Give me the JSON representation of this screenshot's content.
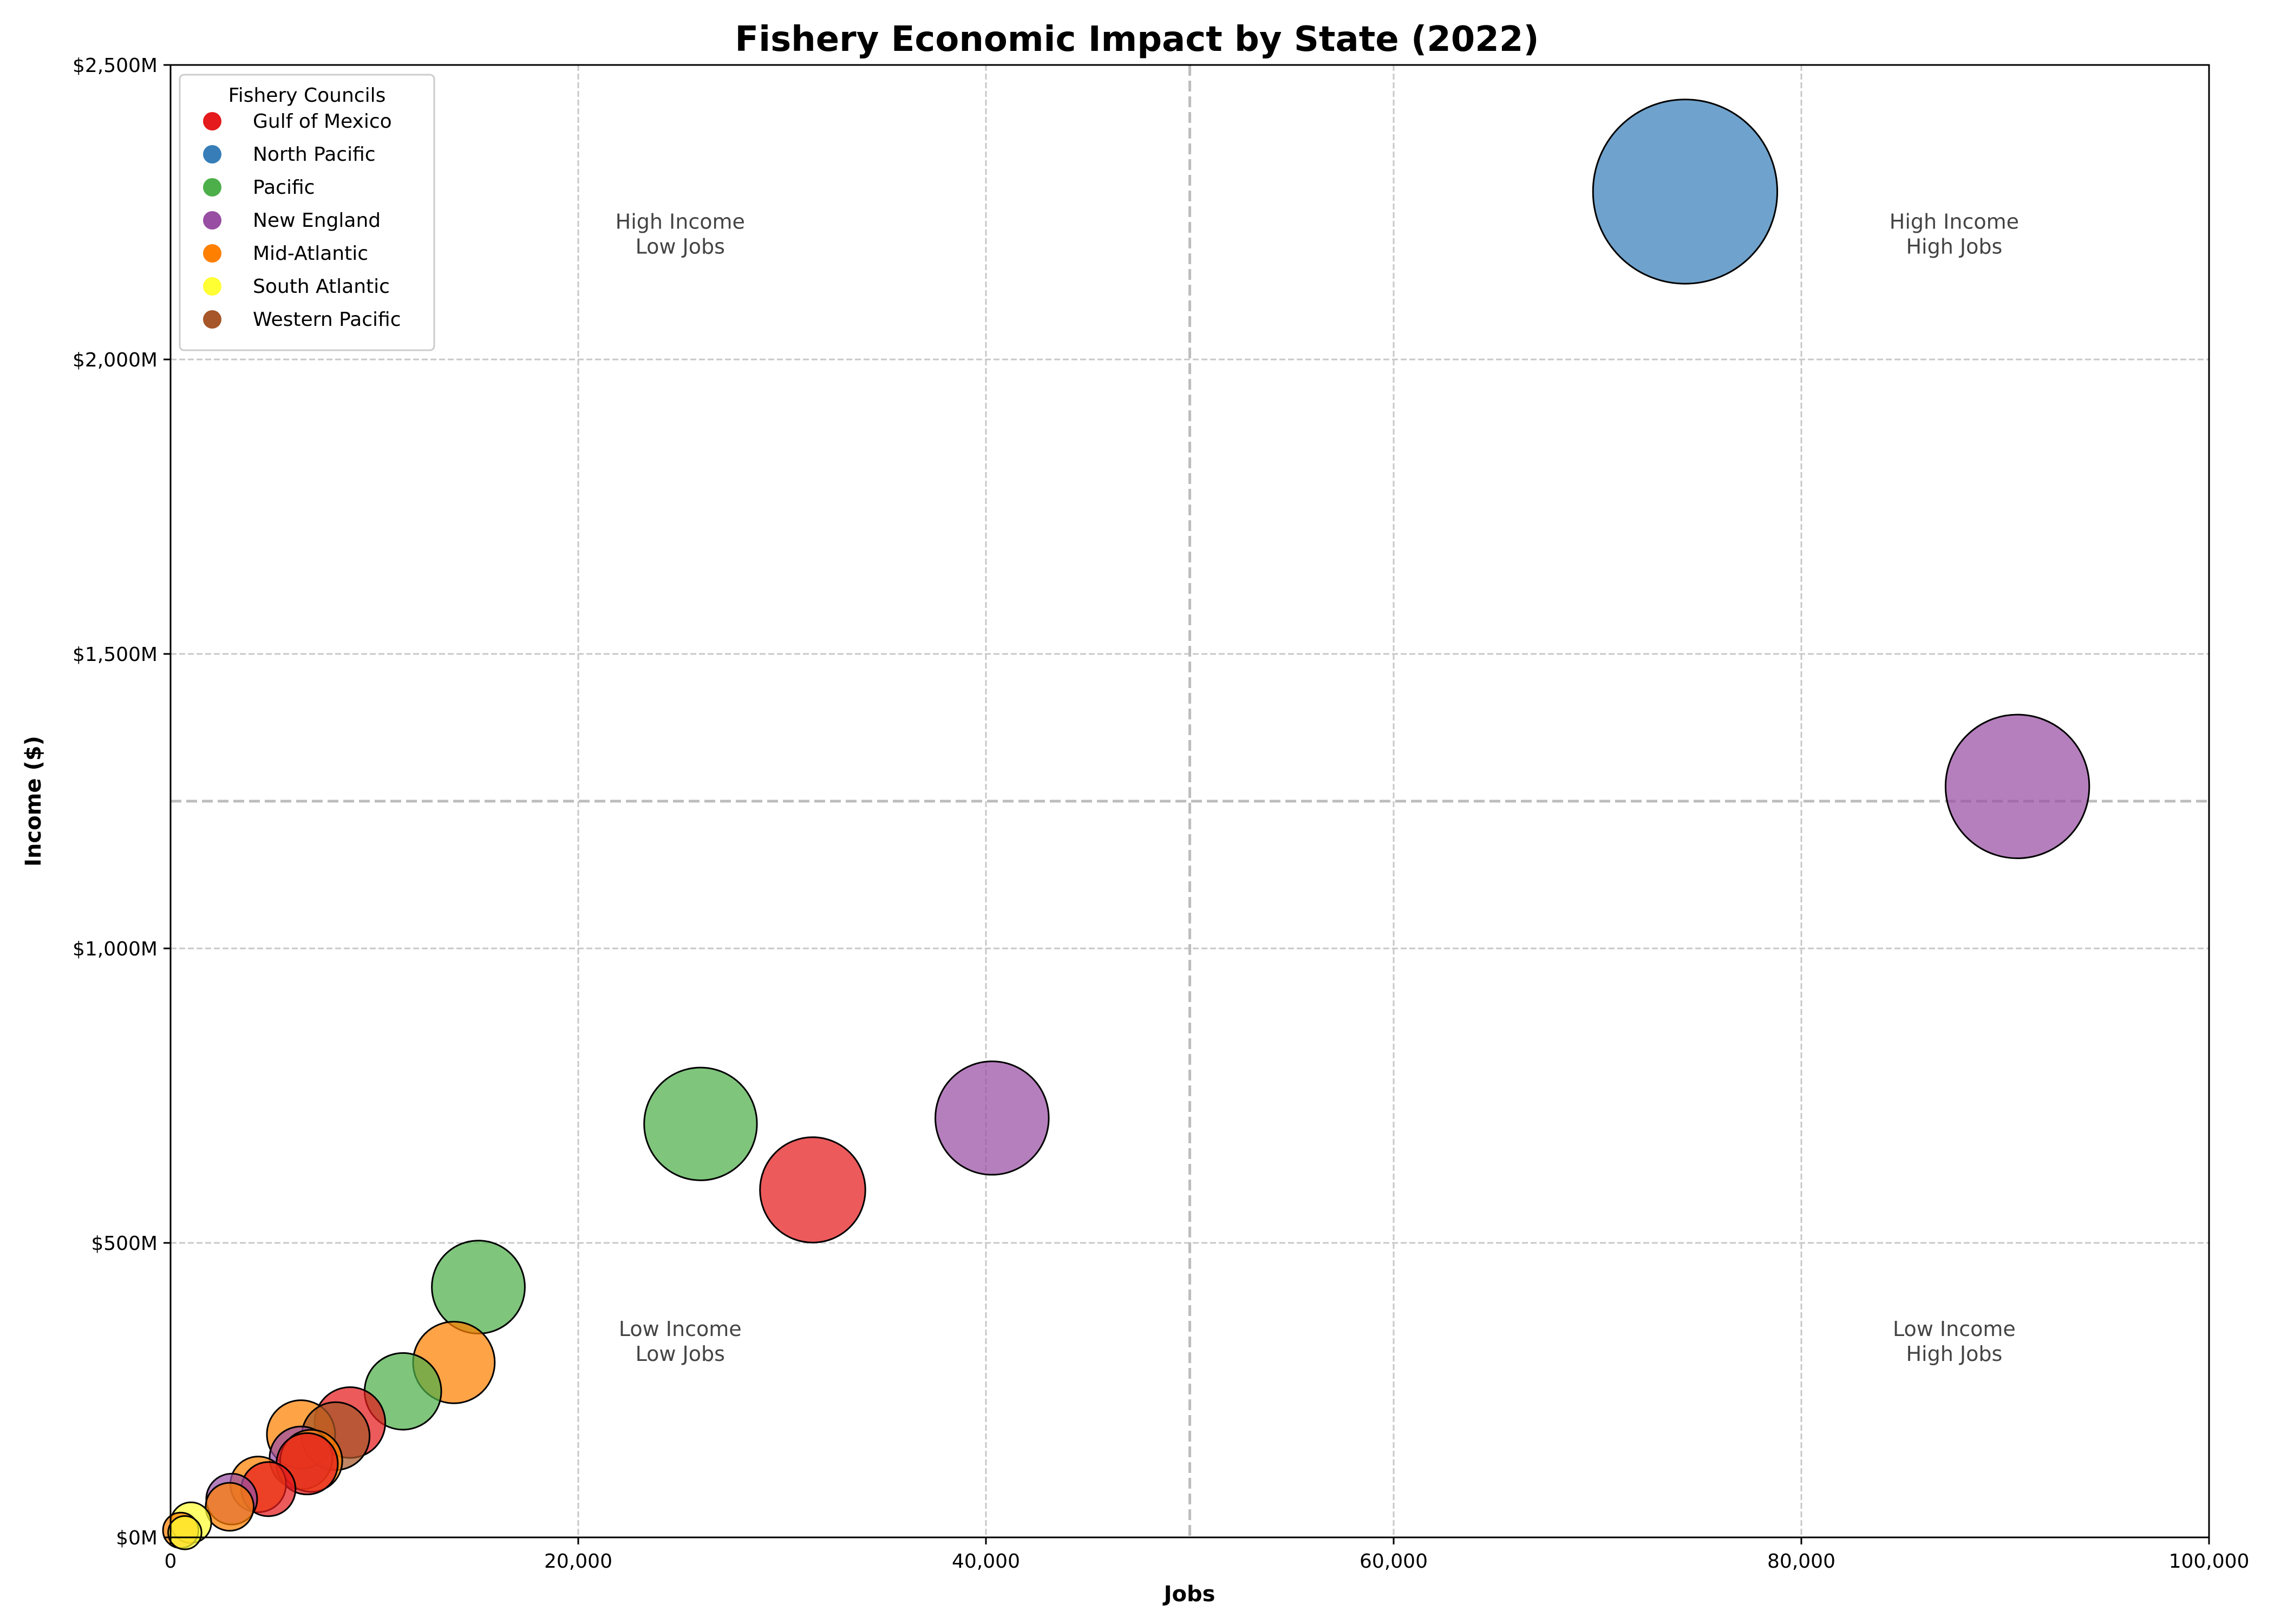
{
  "chart_data": {
    "type": "scatter",
    "title": "Fishery Economic Impact by State (2022)",
    "xlabel": "Jobs",
    "ylabel": "Income ($)",
    "xlim": [
      0,
      100000
    ],
    "ylim": [
      0,
      2500
    ],
    "y_unit": "millions USD",
    "x_ticks": [
      0,
      20000,
      40000,
      60000,
      80000,
      100000
    ],
    "x_tick_labels": [
      "0",
      "20,000",
      "40,000",
      "60,000",
      "80,000",
      "100,000"
    ],
    "y_ticks": [
      0,
      500,
      1000,
      1500,
      2000,
      2500
    ],
    "y_tick_labels": [
      "$0M",
      "$500M",
      "$1,000M",
      "$1,500M",
      "$2,000M",
      "$2,500M"
    ],
    "grid": true,
    "reference_lines": {
      "x": 50000,
      "y": 1250
    },
    "quadrant_labels": [
      {
        "lines": [
          "High Income",
          "Low Jobs"
        ],
        "x": 25000,
        "y": 2200
      },
      {
        "lines": [
          "High Income",
          "High Jobs"
        ],
        "x": 87500,
        "y": 2200
      },
      {
        "lines": [
          "Low Income",
          "Low Jobs"
        ],
        "x": 25000,
        "y": 320
      },
      {
        "lines": [
          "Low Income",
          "High Jobs"
        ],
        "x": 87500,
        "y": 320
      }
    ],
    "legend": {
      "title": "Fishery Councils",
      "placement": "top-left"
    },
    "colors": {
      "Gulf of Mexico": "#e41a1c",
      "North Pacific": "#377eb8",
      "Pacific": "#4daf4a",
      "New England": "#984ea3",
      "Mid-Atlantic": "#ff7f00",
      "South Atlantic": "#ffff33",
      "Western Pacific": "#a65628"
    },
    "series": [
      {
        "name": "Gulf of Mexico",
        "points": [
          {
            "x": 31500,
            "y": 590
          },
          {
            "x": 8800,
            "y": 195
          },
          {
            "x": 6700,
            "y": 125
          },
          {
            "x": 4800,
            "y": 82
          }
        ]
      },
      {
        "name": "North Pacific",
        "points": [
          {
            "x": 74300,
            "y": 2285
          }
        ]
      },
      {
        "name": "Pacific",
        "points": [
          {
            "x": 26000,
            "y": 702
          },
          {
            "x": 15100,
            "y": 425
          },
          {
            "x": 11400,
            "y": 248
          }
        ]
      },
      {
        "name": "New England",
        "points": [
          {
            "x": 90600,
            "y": 1275
          },
          {
            "x": 40300,
            "y": 712
          },
          {
            "x": 6400,
            "y": 135
          },
          {
            "x": 3000,
            "y": 65
          }
        ]
      },
      {
        "name": "Mid-Atlantic",
        "points": [
          {
            "x": 13900,
            "y": 297
          },
          {
            "x": 6400,
            "y": 175
          },
          {
            "x": 6900,
            "y": 130
          },
          {
            "x": 4300,
            "y": 90
          },
          {
            "x": 2900,
            "y": 52
          },
          {
            "x": 500,
            "y": 12
          }
        ]
      },
      {
        "name": "South Atlantic",
        "points": [
          {
            "x": 1000,
            "y": 25
          },
          {
            "x": 700,
            "y": 8
          }
        ]
      },
      {
        "name": "Western Pacific",
        "points": [
          {
            "x": 8100,
            "y": 172
          }
        ]
      }
    ]
  }
}
